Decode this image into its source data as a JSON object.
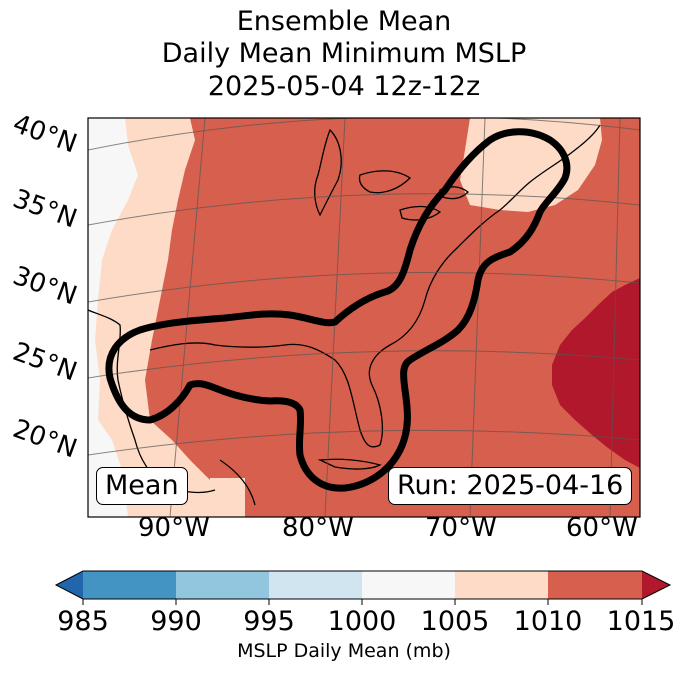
{
  "title": {
    "line1": "Ensemble Mean",
    "line2": "Daily Mean Minimum MSLP",
    "line3": "2025-05-04 12z-12z"
  },
  "map": {
    "lat_labels": [
      "40°N",
      "35°N",
      "30°N",
      "25°N",
      "20°N"
    ],
    "lon_labels": [
      "90°W",
      "80°W",
      "70°W",
      "60°W"
    ],
    "mean_label": "Mean",
    "run_label": "Run: 2025-04-16"
  },
  "colorbar": {
    "ticks": [
      "985",
      "990",
      "995",
      "1000",
      "1005",
      "1010",
      "1015"
    ],
    "label": "MSLP Daily Mean (mb)",
    "colors": {
      "below": "#2166ac",
      "985_990": "#4393c3",
      "990_995": "#92c5de",
      "995_1000": "#d1e5f0",
      "1000_1005": "#f7f7f7",
      "1005_1010": "#fddbc7",
      "1010_1015": "#d6604d",
      "above": "#b2182b"
    }
  }
}
